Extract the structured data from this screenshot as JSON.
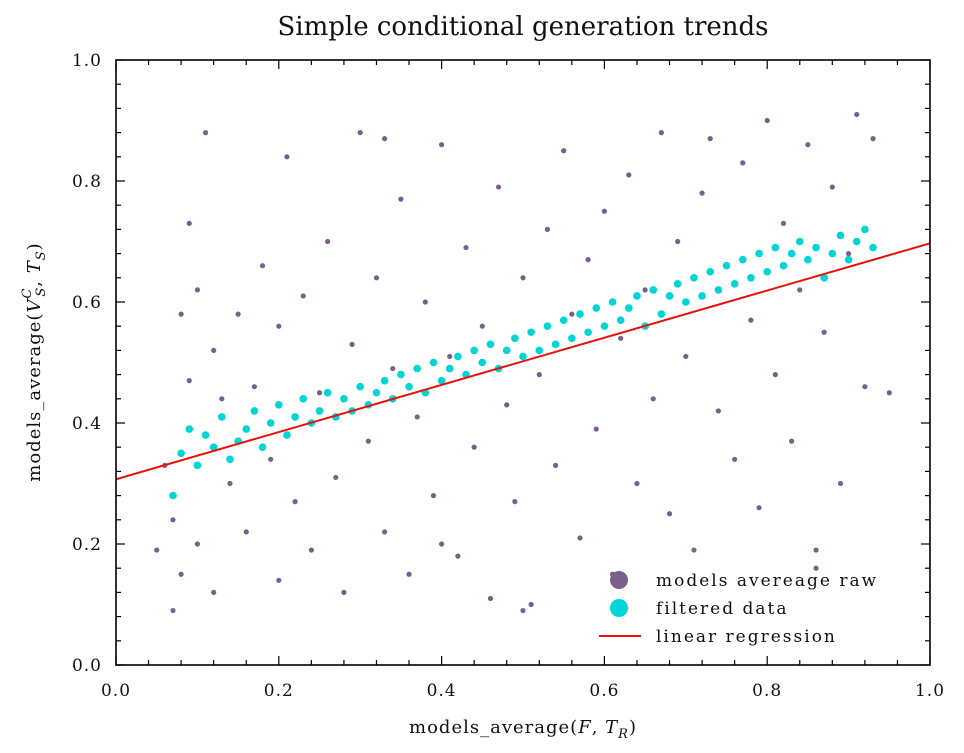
{
  "chart_data": {
    "type": "scatter",
    "title": "Simple conditional generation trends",
    "xlabel": "models_average(F, T_R)",
    "ylabel": "models_average(V_S^C, T_S)",
    "xlim": [
      0.0,
      1.0
    ],
    "ylim": [
      0.0,
      1.0
    ],
    "xticks": [
      "0.0",
      "0.2",
      "0.4",
      "0.6",
      "0.8",
      "1.0"
    ],
    "yticks": [
      "0.0",
      "0.2",
      "0.4",
      "0.6",
      "0.8",
      "1.0"
    ],
    "grid": false,
    "legend_position": "lower-right",
    "series": [
      {
        "name": "models avereage raw",
        "kind": "scatter",
        "color": "#7a5f8e",
        "points": [
          [
            0.05,
            0.19
          ],
          [
            0.06,
            0.33
          ],
          [
            0.07,
            0.09
          ],
          [
            0.07,
            0.24
          ],
          [
            0.08,
            0.15
          ],
          [
            0.08,
            0.58
          ],
          [
            0.09,
            0.47
          ],
          [
            0.09,
            0.73
          ],
          [
            0.1,
            0.2
          ],
          [
            0.1,
            0.62
          ],
          [
            0.11,
            0.88
          ],
          [
            0.12,
            0.12
          ],
          [
            0.12,
            0.52
          ],
          [
            0.13,
            0.44
          ],
          [
            0.14,
            0.3
          ],
          [
            0.15,
            0.58
          ],
          [
            0.16,
            0.22
          ],
          [
            0.17,
            0.46
          ],
          [
            0.18,
            0.66
          ],
          [
            0.19,
            0.34
          ],
          [
            0.2,
            0.14
          ],
          [
            0.2,
            0.56
          ],
          [
            0.21,
            0.84
          ],
          [
            0.22,
            0.27
          ],
          [
            0.23,
            0.61
          ],
          [
            0.24,
            0.19
          ],
          [
            0.25,
            0.45
          ],
          [
            0.26,
            0.7
          ],
          [
            0.27,
            0.31
          ],
          [
            0.28,
            0.12
          ],
          [
            0.29,
            0.53
          ],
          [
            0.3,
            0.88
          ],
          [
            0.31,
            0.37
          ],
          [
            0.32,
            0.64
          ],
          [
            0.33,
            0.22
          ],
          [
            0.34,
            0.49
          ],
          [
            0.35,
            0.77
          ],
          [
            0.36,
            0.15
          ],
          [
            0.37,
            0.41
          ],
          [
            0.38,
            0.6
          ],
          [
            0.39,
            0.28
          ],
          [
            0.4,
            0.86
          ],
          [
            0.41,
            0.51
          ],
          [
            0.42,
            0.18
          ],
          [
            0.43,
            0.69
          ],
          [
            0.44,
            0.36
          ],
          [
            0.45,
            0.56
          ],
          [
            0.46,
            0.11
          ],
          [
            0.47,
            0.79
          ],
          [
            0.48,
            0.43
          ],
          [
            0.49,
            0.27
          ],
          [
            0.5,
            0.64
          ],
          [
            0.51,
            0.1
          ],
          [
            0.52,
            0.48
          ],
          [
            0.53,
            0.72
          ],
          [
            0.54,
            0.33
          ],
          [
            0.55,
            0.85
          ],
          [
            0.56,
            0.58
          ],
          [
            0.57,
            0.21
          ],
          [
            0.58,
            0.67
          ],
          [
            0.59,
            0.39
          ],
          [
            0.6,
            0.75
          ],
          [
            0.61,
            0.15
          ],
          [
            0.62,
            0.54
          ],
          [
            0.63,
            0.81
          ],
          [
            0.64,
            0.3
          ],
          [
            0.65,
            0.62
          ],
          [
            0.66,
            0.44
          ],
          [
            0.67,
            0.88
          ],
          [
            0.68,
            0.25
          ],
          [
            0.69,
            0.7
          ],
          [
            0.7,
            0.51
          ],
          [
            0.71,
            0.19
          ],
          [
            0.72,
            0.78
          ],
          [
            0.73,
            0.87
          ],
          [
            0.74,
            0.42
          ],
          [
            0.75,
            0.66
          ],
          [
            0.76,
            0.34
          ],
          [
            0.77,
            0.83
          ],
          [
            0.78,
            0.57
          ],
          [
            0.79,
            0.26
          ],
          [
            0.8,
            0.9
          ],
          [
            0.81,
            0.48
          ],
          [
            0.82,
            0.73
          ],
          [
            0.83,
            0.37
          ],
          [
            0.84,
            0.62
          ],
          [
            0.85,
            0.86
          ],
          [
            0.86,
            0.19
          ],
          [
            0.87,
            0.55
          ],
          [
            0.88,
            0.79
          ],
          [
            0.89,
            0.3
          ],
          [
            0.9,
            0.68
          ],
          [
            0.91,
            0.91
          ],
          [
            0.92,
            0.46
          ],
          [
            0.93,
            0.87
          ],
          [
            0.95,
            0.45
          ],
          [
            0.33,
            0.87
          ],
          [
            0.5,
            0.09
          ],
          [
            0.86,
            0.16
          ],
          [
            0.4,
            0.2
          ]
        ]
      },
      {
        "name": "filtered data",
        "kind": "scatter",
        "color": "#00d4d4",
        "points": [
          [
            0.07,
            0.28
          ],
          [
            0.08,
            0.35
          ],
          [
            0.09,
            0.39
          ],
          [
            0.1,
            0.33
          ],
          [
            0.11,
            0.38
          ],
          [
            0.12,
            0.36
          ],
          [
            0.13,
            0.41
          ],
          [
            0.14,
            0.34
          ],
          [
            0.15,
            0.37
          ],
          [
            0.16,
            0.39
          ],
          [
            0.17,
            0.42
          ],
          [
            0.18,
            0.36
          ],
          [
            0.19,
            0.4
          ],
          [
            0.2,
            0.43
          ],
          [
            0.21,
            0.38
          ],
          [
            0.22,
            0.41
          ],
          [
            0.23,
            0.44
          ],
          [
            0.24,
            0.4
          ],
          [
            0.25,
            0.42
          ],
          [
            0.26,
            0.45
          ],
          [
            0.27,
            0.41
          ],
          [
            0.28,
            0.44
          ],
          [
            0.29,
            0.42
          ],
          [
            0.3,
            0.46
          ],
          [
            0.31,
            0.43
          ],
          [
            0.32,
            0.45
          ],
          [
            0.33,
            0.47
          ],
          [
            0.34,
            0.44
          ],
          [
            0.35,
            0.48
          ],
          [
            0.36,
            0.46
          ],
          [
            0.37,
            0.49
          ],
          [
            0.38,
            0.45
          ],
          [
            0.39,
            0.5
          ],
          [
            0.4,
            0.47
          ],
          [
            0.41,
            0.49
          ],
          [
            0.42,
            0.51
          ],
          [
            0.43,
            0.48
          ],
          [
            0.44,
            0.52
          ],
          [
            0.45,
            0.5
          ],
          [
            0.46,
            0.53
          ],
          [
            0.47,
            0.49
          ],
          [
            0.48,
            0.52
          ],
          [
            0.49,
            0.54
          ],
          [
            0.5,
            0.51
          ],
          [
            0.51,
            0.55
          ],
          [
            0.52,
            0.52
          ],
          [
            0.53,
            0.56
          ],
          [
            0.54,
            0.53
          ],
          [
            0.55,
            0.57
          ],
          [
            0.56,
            0.54
          ],
          [
            0.57,
            0.58
          ],
          [
            0.58,
            0.55
          ],
          [
            0.59,
            0.59
          ],
          [
            0.6,
            0.56
          ],
          [
            0.61,
            0.6
          ],
          [
            0.62,
            0.57
          ],
          [
            0.63,
            0.59
          ],
          [
            0.64,
            0.61
          ],
          [
            0.65,
            0.56
          ],
          [
            0.66,
            0.62
          ],
          [
            0.67,
            0.58
          ],
          [
            0.68,
            0.61
          ],
          [
            0.69,
            0.63
          ],
          [
            0.7,
            0.6
          ],
          [
            0.71,
            0.64
          ],
          [
            0.72,
            0.61
          ],
          [
            0.73,
            0.65
          ],
          [
            0.74,
            0.62
          ],
          [
            0.75,
            0.66
          ],
          [
            0.76,
            0.63
          ],
          [
            0.77,
            0.67
          ],
          [
            0.78,
            0.64
          ],
          [
            0.79,
            0.68
          ],
          [
            0.8,
            0.65
          ],
          [
            0.81,
            0.69
          ],
          [
            0.82,
            0.66
          ],
          [
            0.83,
            0.68
          ],
          [
            0.84,
            0.7
          ],
          [
            0.85,
            0.67
          ],
          [
            0.86,
            0.69
          ],
          [
            0.87,
            0.64
          ],
          [
            0.88,
            0.68
          ],
          [
            0.89,
            0.71
          ],
          [
            0.9,
            0.67
          ],
          [
            0.91,
            0.7
          ],
          [
            0.92,
            0.72
          ],
          [
            0.93,
            0.69
          ]
        ]
      },
      {
        "name": "linear regression",
        "kind": "line",
        "color": "#e8120c",
        "points": [
          [
            0.0,
            0.307
          ],
          [
            1.0,
            0.697
          ]
        ]
      }
    ]
  }
}
